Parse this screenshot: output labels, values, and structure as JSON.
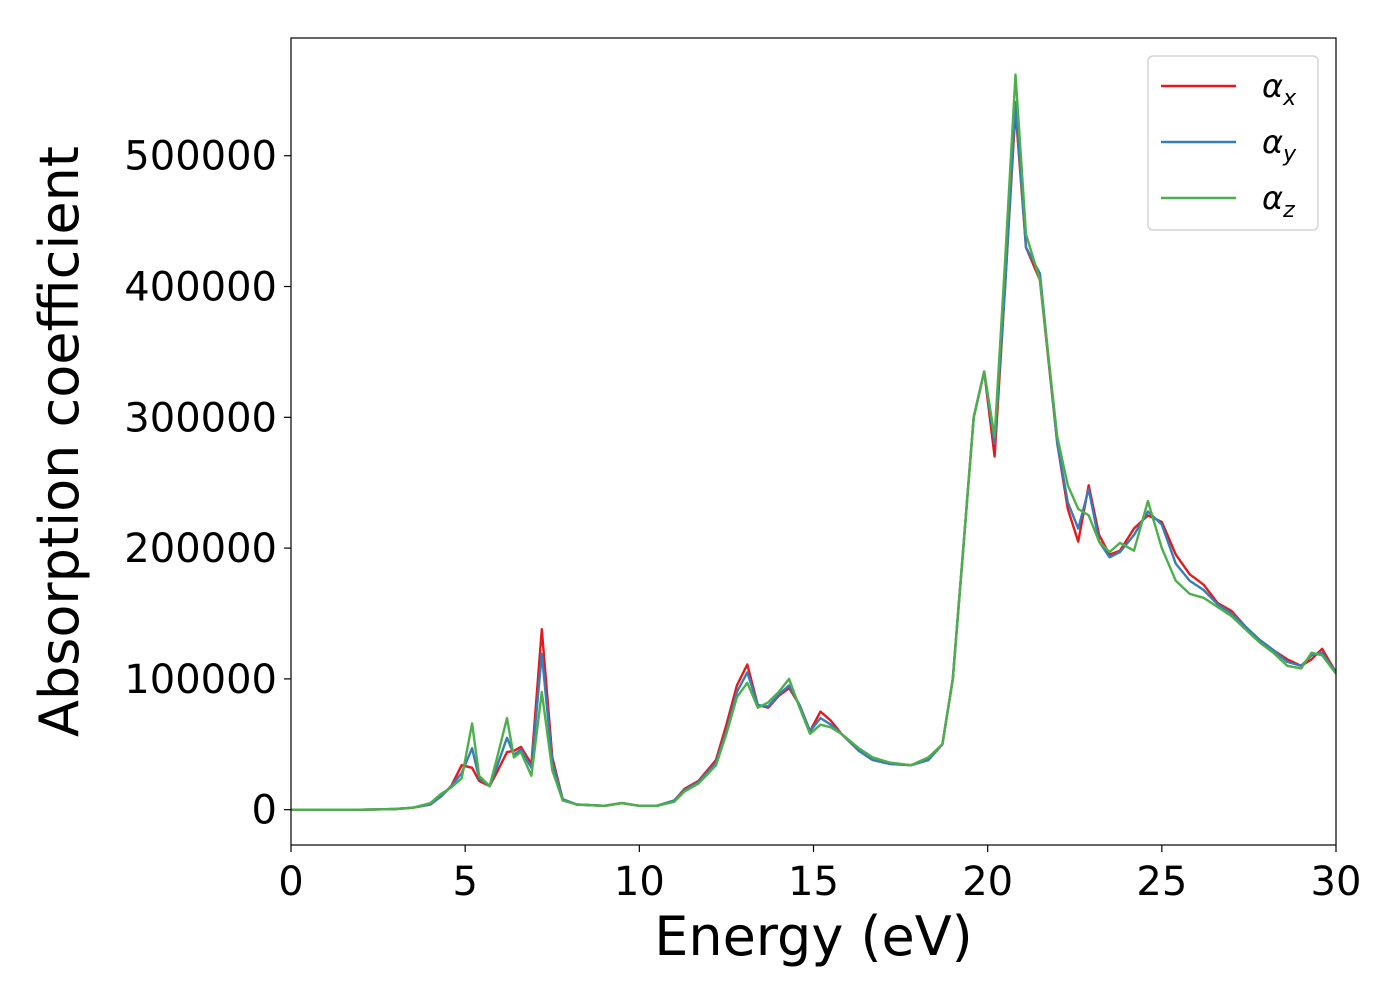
{
  "chart_data": {
    "type": "line",
    "title": "",
    "xlabel": "Energy (eV)",
    "ylabel": "Absorption coefficient",
    "xlim": [
      0,
      30
    ],
    "ylim": [
      -27000,
      590000
    ],
    "xticks": [
      0,
      5,
      10,
      15,
      20,
      25,
      30
    ],
    "yticks": [
      0,
      100000,
      200000,
      300000,
      400000,
      500000
    ],
    "grid": false,
    "legend_position": "top-right",
    "series": [
      {
        "name": "α_x",
        "symbol": "α",
        "subscript": "x",
        "color": "#e41a1c",
        "x": [
          0,
          1,
          2,
          3,
          3.5,
          4.0,
          4.3,
          4.6,
          4.9,
          5.2,
          5.4,
          5.7,
          5.9,
          6.2,
          6.4,
          6.6,
          6.9,
          7.2,
          7.5,
          7.8,
          8.2,
          9.0,
          9.5,
          10.0,
          10.5,
          11.0,
          11.3,
          11.7,
          12.2,
          12.5,
          12.8,
          13.1,
          13.4,
          13.7,
          14.0,
          14.3,
          14.6,
          14.9,
          15.2,
          15.5,
          15.8,
          16.3,
          16.7,
          17.2,
          17.8,
          18.3,
          18.7,
          19.0,
          19.3,
          19.6,
          19.9,
          20.2,
          20.5,
          20.8,
          21.1,
          21.5,
          22.0,
          22.3,
          22.6,
          22.9,
          23.2,
          23.5,
          23.8,
          24.2,
          24.6,
          25.0,
          25.4,
          25.8,
          26.2,
          26.6,
          27.0,
          27.4,
          27.8,
          28.2,
          28.6,
          29.0,
          29.3,
          29.6,
          30.0
        ],
        "values": [
          0,
          0,
          0,
          500,
          1500,
          4000,
          10000,
          18000,
          34000,
          32000,
          22000,
          18000,
          28000,
          44000,
          45000,
          48000,
          35000,
          138000,
          40000,
          8000,
          4000,
          3000,
          5000,
          3000,
          3000,
          7000,
          16000,
          22000,
          38000,
          65000,
          95000,
          111000,
          80000,
          78000,
          87000,
          93000,
          80000,
          60000,
          75000,
          68000,
          58000,
          45000,
          38000,
          35000,
          34000,
          38000,
          50000,
          100000,
          200000,
          300000,
          335000,
          270000,
          400000,
          535000,
          430000,
          405000,
          280000,
          230000,
          205000,
          248000,
          210000,
          195000,
          198000,
          215000,
          225000,
          220000,
          195000,
          180000,
          172000,
          158000,
          152000,
          140000,
          130000,
          122000,
          115000,
          110000,
          115000,
          123000,
          105000
        ]
      },
      {
        "name": "α_y",
        "symbol": "α",
        "subscript": "y",
        "color": "#377eb8",
        "x": [
          0,
          1,
          2,
          3,
          3.5,
          4.0,
          4.3,
          4.6,
          4.9,
          5.2,
          5.4,
          5.7,
          5.9,
          6.2,
          6.4,
          6.6,
          6.9,
          7.2,
          7.5,
          7.8,
          8.2,
          9.0,
          9.5,
          10.0,
          10.5,
          11.0,
          11.3,
          11.7,
          12.2,
          12.5,
          12.8,
          13.1,
          13.4,
          13.7,
          14.0,
          14.3,
          14.6,
          14.9,
          15.2,
          15.5,
          15.8,
          16.3,
          16.7,
          17.2,
          17.8,
          18.3,
          18.7,
          19.0,
          19.3,
          19.6,
          19.9,
          20.2,
          20.5,
          20.8,
          21.1,
          21.5,
          22.0,
          22.3,
          22.6,
          22.9,
          23.2,
          23.5,
          23.8,
          24.2,
          24.6,
          25.0,
          25.4,
          25.8,
          26.2,
          26.6,
          27.0,
          27.4,
          27.8,
          28.2,
          28.6,
          29.0,
          29.3,
          29.6,
          30.0
        ],
        "values": [
          0,
          0,
          0,
          500,
          1500,
          4000,
          10000,
          18000,
          28000,
          47000,
          24000,
          18000,
          32000,
          55000,
          42000,
          46000,
          32000,
          119000,
          36000,
          8000,
          4000,
          3000,
          5000,
          3000,
          3000,
          7000,
          15000,
          21000,
          36000,
          60000,
          90000,
          105000,
          80000,
          79000,
          88000,
          95000,
          80000,
          60000,
          70000,
          65000,
          58000,
          45000,
          38000,
          35000,
          34000,
          38000,
          50000,
          100000,
          200000,
          300000,
          335000,
          280000,
          400000,
          541000,
          430000,
          410000,
          280000,
          235000,
          215000,
          245000,
          205000,
          193000,
          197000,
          210000,
          228000,
          218000,
          188000,
          175000,
          168000,
          157000,
          150000,
          140000,
          130000,
          122000,
          113000,
          110000,
          118000,
          120000,
          105000
        ]
      },
      {
        "name": "α_z",
        "symbol": "α",
        "subscript": "z",
        "color": "#4daf4a",
        "x": [
          0,
          1,
          2,
          3,
          3.5,
          4.0,
          4.3,
          4.6,
          4.9,
          5.2,
          5.4,
          5.7,
          5.9,
          6.2,
          6.4,
          6.6,
          6.9,
          7.2,
          7.5,
          7.8,
          8.2,
          9.0,
          9.5,
          10.0,
          10.5,
          11.0,
          11.3,
          11.7,
          12.2,
          12.5,
          12.8,
          13.1,
          13.4,
          13.7,
          14.0,
          14.3,
          14.6,
          14.9,
          15.2,
          15.5,
          15.8,
          16.3,
          16.7,
          17.2,
          17.8,
          18.3,
          18.7,
          19.0,
          19.3,
          19.6,
          19.9,
          20.2,
          20.5,
          20.8,
          21.1,
          21.5,
          22.0,
          22.3,
          22.6,
          22.9,
          23.2,
          23.5,
          23.8,
          24.2,
          24.6,
          25.0,
          25.4,
          25.8,
          26.2,
          26.6,
          27.0,
          27.4,
          27.8,
          28.2,
          28.6,
          29.0,
          29.3,
          29.6,
          30.0
        ],
        "values": [
          0,
          0,
          0,
          500,
          1500,
          5000,
          12000,
          17000,
          24000,
          66000,
          26000,
          18000,
          38000,
          70000,
          40000,
          44000,
          26000,
          90000,
          30000,
          7000,
          4000,
          3000,
          5000,
          3000,
          3000,
          6000,
          14000,
          20000,
          34000,
          58000,
          86000,
          97000,
          78000,
          82000,
          90000,
          100000,
          78000,
          58000,
          65000,
          63000,
          58000,
          47000,
          40000,
          36000,
          34000,
          40000,
          50000,
          100000,
          200000,
          300000,
          335000,
          285000,
          420000,
          562000,
          440000,
          405000,
          285000,
          248000,
          230000,
          225000,
          205000,
          197000,
          204000,
          198000,
          236000,
          200000,
          175000,
          165000,
          162000,
          155000,
          148000,
          138000,
          128000,
          120000,
          110000,
          108000,
          120000,
          118000,
          104000
        ]
      }
    ]
  }
}
